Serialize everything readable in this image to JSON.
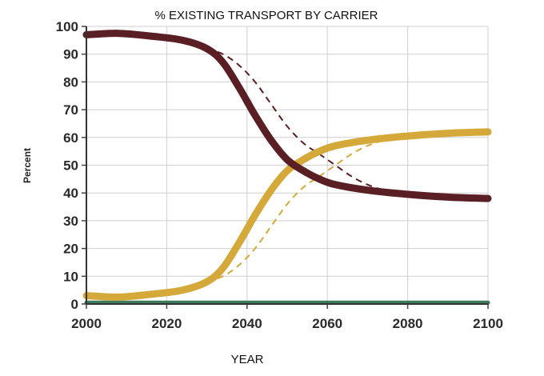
{
  "chart_data": {
    "type": "line",
    "title": "% EXISTING TRANSPORT BY CARRIER",
    "xlabel": "YEAR",
    "ylabel": "Percent",
    "xlim": [
      2000,
      2100
    ],
    "ylim": [
      0,
      100
    ],
    "x_ticks": [
      "2000",
      "2020",
      "2040",
      "2060",
      "2080",
      "2100"
    ],
    "y_ticks": [
      "0",
      "10",
      "20",
      "30",
      "40",
      "50",
      "60",
      "70",
      "80",
      "90",
      "100"
    ],
    "grid": true,
    "legend": "none",
    "series": [
      {
        "color": "#5a1f25",
        "style": "solid",
        "points": [
          [
            2000,
            97
          ],
          [
            2008,
            97.5
          ],
          [
            2016,
            96.5
          ],
          [
            2024,
            95
          ],
          [
            2030,
            92
          ],
          [
            2034,
            87
          ],
          [
            2038,
            78
          ],
          [
            2042,
            68
          ],
          [
            2046,
            59
          ],
          [
            2050,
            52
          ],
          [
            2054,
            48
          ],
          [
            2058,
            45
          ],
          [
            2062,
            43
          ],
          [
            2070,
            41
          ],
          [
            2080,
            39.5
          ],
          [
            2090,
            38.5
          ],
          [
            2100,
            38
          ]
        ]
      },
      {
        "color": "#d4a93a",
        "style": "solid",
        "points": [
          [
            2000,
            3
          ],
          [
            2008,
            2.5
          ],
          [
            2016,
            3.5
          ],
          [
            2024,
            5
          ],
          [
            2030,
            8
          ],
          [
            2034,
            13
          ],
          [
            2038,
            22
          ],
          [
            2042,
            32
          ],
          [
            2046,
            41
          ],
          [
            2050,
            48
          ],
          [
            2054,
            52
          ],
          [
            2058,
            55
          ],
          [
            2062,
            57
          ],
          [
            2070,
            59
          ],
          [
            2080,
            60.5
          ],
          [
            2090,
            61.5
          ],
          [
            2100,
            62
          ]
        ]
      },
      {
        "color": "#5a1f25",
        "style": "dashed",
        "points": [
          [
            2030,
            92
          ],
          [
            2034,
            90
          ],
          [
            2038,
            86
          ],
          [
            2042,
            80
          ],
          [
            2046,
            72
          ],
          [
            2050,
            64
          ],
          [
            2054,
            58
          ],
          [
            2058,
            54
          ],
          [
            2062,
            50
          ],
          [
            2066,
            46
          ],
          [
            2070,
            43
          ],
          [
            2074,
            41
          ]
        ]
      },
      {
        "color": "#d4a93a",
        "style": "dashed",
        "points": [
          [
            2030,
            8
          ],
          [
            2034,
            10
          ],
          [
            2038,
            14
          ],
          [
            2042,
            20
          ],
          [
            2046,
            28
          ],
          [
            2050,
            36
          ],
          [
            2054,
            42
          ],
          [
            2058,
            46
          ],
          [
            2062,
            50
          ],
          [
            2066,
            54
          ],
          [
            2070,
            57
          ],
          [
            2074,
            59
          ]
        ]
      },
      {
        "color": "#3d7a5a",
        "style": "solid",
        "points": [
          [
            2000,
            0.5
          ],
          [
            2100,
            0.5
          ]
        ]
      }
    ]
  }
}
